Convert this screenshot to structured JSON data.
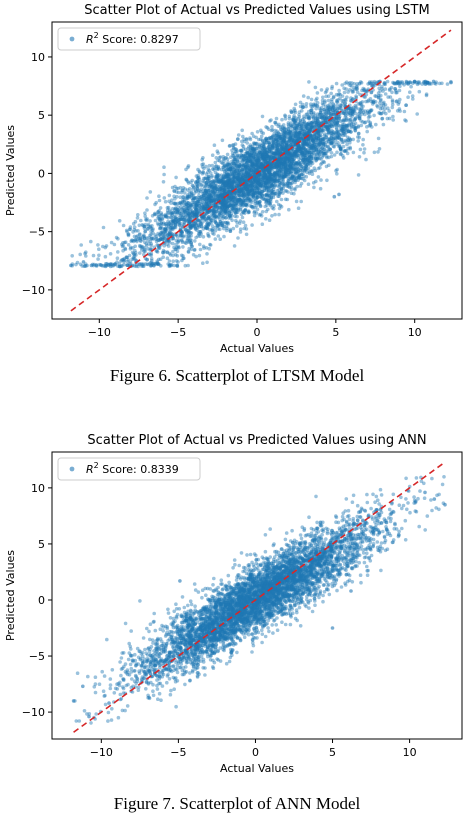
{
  "figures": [
    {
      "caption": "Figure 6. Scatterplot of LTSM Model",
      "chart_data": {
        "type": "scatter",
        "title": "Scatter Plot of Actual vs Predicted Values using LSTM",
        "xlabel": "Actual Values",
        "ylabel": "Predicted Values",
        "xlim": [
          -13,
          13
        ],
        "ylim": [
          -12.5,
          13
        ],
        "xticks": [
          -10,
          -5,
          0,
          5,
          10
        ],
        "yticks": [
          -10,
          -5,
          0,
          5,
          10
        ],
        "tick_labels_x": [
          "−10",
          "−5",
          "0",
          "5",
          "10"
        ],
        "tick_labels_y": [
          "−10",
          "−5",
          "0",
          "5",
          "10"
        ],
        "grid": false,
        "legend": {
          "position": "upper-left",
          "entry_prefix": "R",
          "entry_sup": "2",
          "entry_text": " Score: 0.8297"
        },
        "series": [
          {
            "marker_color": "#1f77b4",
            "cloud": {
              "x_range": [
                -11.8,
                12.3
              ],
              "slope": 0.83,
              "intercept": 0,
              "spread": 1.6,
              "clip_low": -8,
              "clip_high": 7.9
            },
            "points": [
              [
                -11.8,
                -7.9
              ],
              [
                -11.0,
                -7.6
              ],
              [
                -10.5,
                -7.9
              ],
              [
                12.3,
                7.8
              ],
              [
                11.2,
                7.9
              ],
              [
                10.8,
                7.8
              ],
              [
                10.0,
                7.9
              ],
              [
                5.2,
                -1.8
              ],
              [
                4.9,
                -2.0
              ],
              [
                -8.5,
                -7.4
              ],
              [
                -9.2,
                -7.8
              ],
              [
                6.5,
                7.7
              ],
              [
                7.8,
                7.9
              ]
            ]
          }
        ],
        "reference_line": {
          "from": [
            -11.8,
            -11.8
          ],
          "to": [
            12.3,
            12.3
          ],
          "color": "#d62728",
          "style": "dashed"
        }
      }
    },
    {
      "caption": "Figure 7. Scatterplot of ANN Model",
      "chart_data": {
        "type": "scatter",
        "title": "Scatter Plot of Actual vs Predicted Values using ANN",
        "xlabel": "Actual Values",
        "ylabel": "Predicted Values",
        "xlim": [
          -13.2,
          13.4
        ],
        "ylim": [
          -12.4,
          13.2
        ],
        "xticks": [
          -10,
          -5,
          0,
          5,
          10
        ],
        "yticks": [
          -10,
          -5,
          0,
          5,
          10
        ],
        "tick_labels_x": [
          "−10",
          "−5",
          "0",
          "5",
          "10"
        ],
        "tick_labels_y": [
          "−10",
          "−5",
          "0",
          "5",
          "10"
        ],
        "grid": false,
        "legend": {
          "position": "upper-left",
          "entry_prefix": "R",
          "entry_sup": "2",
          "entry_text": " Score: 0.8339"
        },
        "series": [
          {
            "marker_color": "#1f77b4",
            "cloud": {
              "x_range": [
                -11.8,
                12.3
              ],
              "slope": 0.82,
              "intercept": 0,
              "spread": 1.5,
              "clip_low": -11,
              "clip_high": 11
            },
            "points": [
              [
                -11.8,
                -9.0
              ],
              [
                -11.2,
                -7.7
              ],
              [
                -10.8,
                -10.4
              ],
              [
                -9.5,
                -9.2
              ],
              [
                12.3,
                8.5
              ],
              [
                11.6,
                9.0
              ],
              [
                11.0,
                9.6
              ],
              [
                10.4,
                8.8
              ],
              [
                5.0,
                -2.5
              ],
              [
                -4.9,
                1.7
              ],
              [
                6.2,
                0.8
              ]
            ]
          }
        ],
        "reference_line": {
          "from": [
            -11.8,
            -11.8
          ],
          "to": [
            12.3,
            12.3
          ],
          "color": "#d62728",
          "style": "dashed"
        }
      }
    }
  ]
}
